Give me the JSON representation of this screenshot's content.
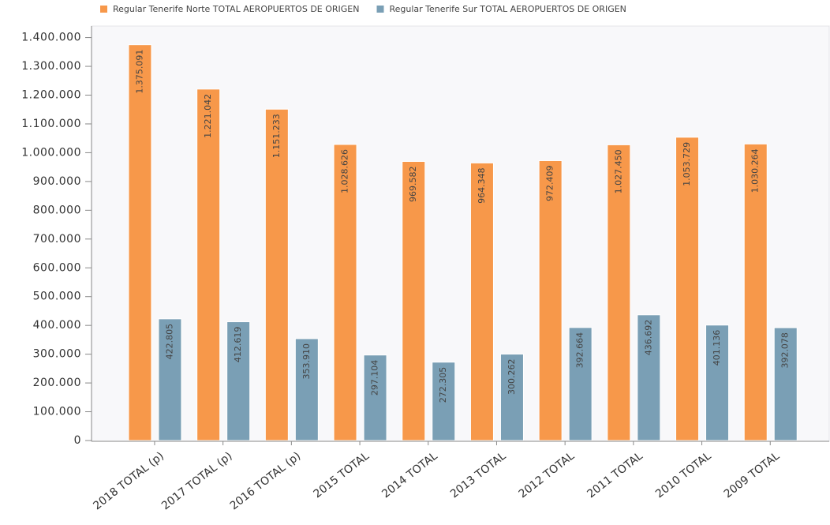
{
  "chart_data": {
    "type": "bar",
    "categories": [
      "2018 TOTAL (p)",
      "2017 TOTAL (p)",
      "2016 TOTAL (p)",
      "2015 TOTAL",
      "2014 TOTAL",
      "2013 TOTAL",
      "2012 TOTAL",
      "2011 TOTAL",
      "2010 TOTAL",
      "2009 TOTAL"
    ],
    "series": [
      {
        "name": "Regular Tenerife Norte TOTAL AEROPUERTOS DE ORIGEN",
        "color": "#f7984a",
        "values": [
          1375091,
          1221042,
          1151233,
          1028626,
          969582,
          964348,
          972409,
          1027450,
          1053729,
          1030264
        ],
        "value_labels": [
          "1.375.091",
          "1.221.042",
          "1.151.233",
          "1.028.626",
          "969.582",
          "964.348",
          "972.409",
          "1.027.450",
          "1.053.729",
          "1.030.264"
        ]
      },
      {
        "name": "Regular Tenerife Sur TOTAL AEROPUERTOS DE ORIGEN",
        "color": "#7a9fb5",
        "values": [
          422805,
          412619,
          353910,
          297104,
          272305,
          300262,
          392664,
          436692,
          401136,
          392078
        ],
        "value_labels": [
          "422.805",
          "412.619",
          "353.910",
          "297.104",
          "272.305",
          "300.262",
          "392.664",
          "436.692",
          "401.136",
          "392.078"
        ]
      }
    ],
    "ylim": [
      0,
      1440000
    ],
    "yticks": [
      0,
      {
        "value": 100000,
        "label": "100.000"
      },
      {
        "value": 200000,
        "label": "200.000"
      },
      {
        "value": 300000,
        "label": "300.000"
      },
      {
        "value": 400000,
        "label": "400.000"
      },
      {
        "value": 500000,
        "label": "500.000"
      },
      {
        "value": 600000,
        "label": "600.000"
      },
      {
        "value": 700000,
        "label": "700.000"
      },
      {
        "value": 800000,
        "label": "800.000"
      },
      {
        "value": 900000,
        "label": "900.000"
      },
      {
        "value": 1000000,
        "label": "1.000.000"
      },
      {
        "value": 1100000,
        "label": "1.100.000"
      },
      {
        "value": 1200000,
        "label": "1.200.000"
      },
      {
        "value": 1300000,
        "label": "1.300.000"
      },
      {
        "value": 1400000,
        "label": "1.400.000"
      }
    ],
    "legend": "top"
  }
}
